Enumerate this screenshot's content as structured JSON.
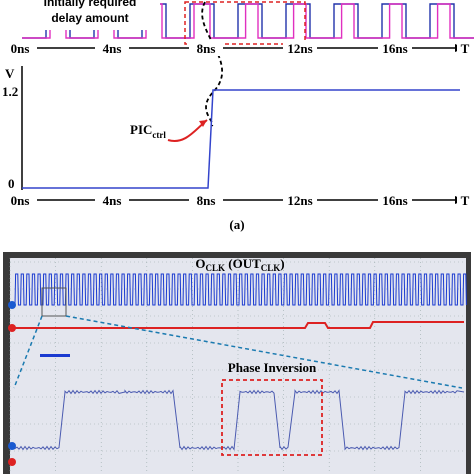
{
  "top_panel": {
    "annotation": [
      "Initially required",
      "delay amount"
    ],
    "x_labels": [
      "0ns",
      "4ns",
      "8ns",
      "12ns",
      "16ns",
      "T"
    ]
  },
  "middle_panel": {
    "y_axis_label": "V",
    "y_labels": [
      "1.2",
      "0"
    ],
    "annotation": {
      "main": "PIC",
      "sub": "ctrl"
    },
    "x_labels": [
      "0ns",
      "4ns",
      "8ns",
      "12ns",
      "16ns",
      "T"
    ]
  },
  "caption": "(a)",
  "scope_panel": {
    "title": {
      "parts": [
        "O",
        "CLK",
        " (OUT",
        "CLK",
        ")"
      ]
    },
    "annotation": "Phase Inversion"
  }
}
